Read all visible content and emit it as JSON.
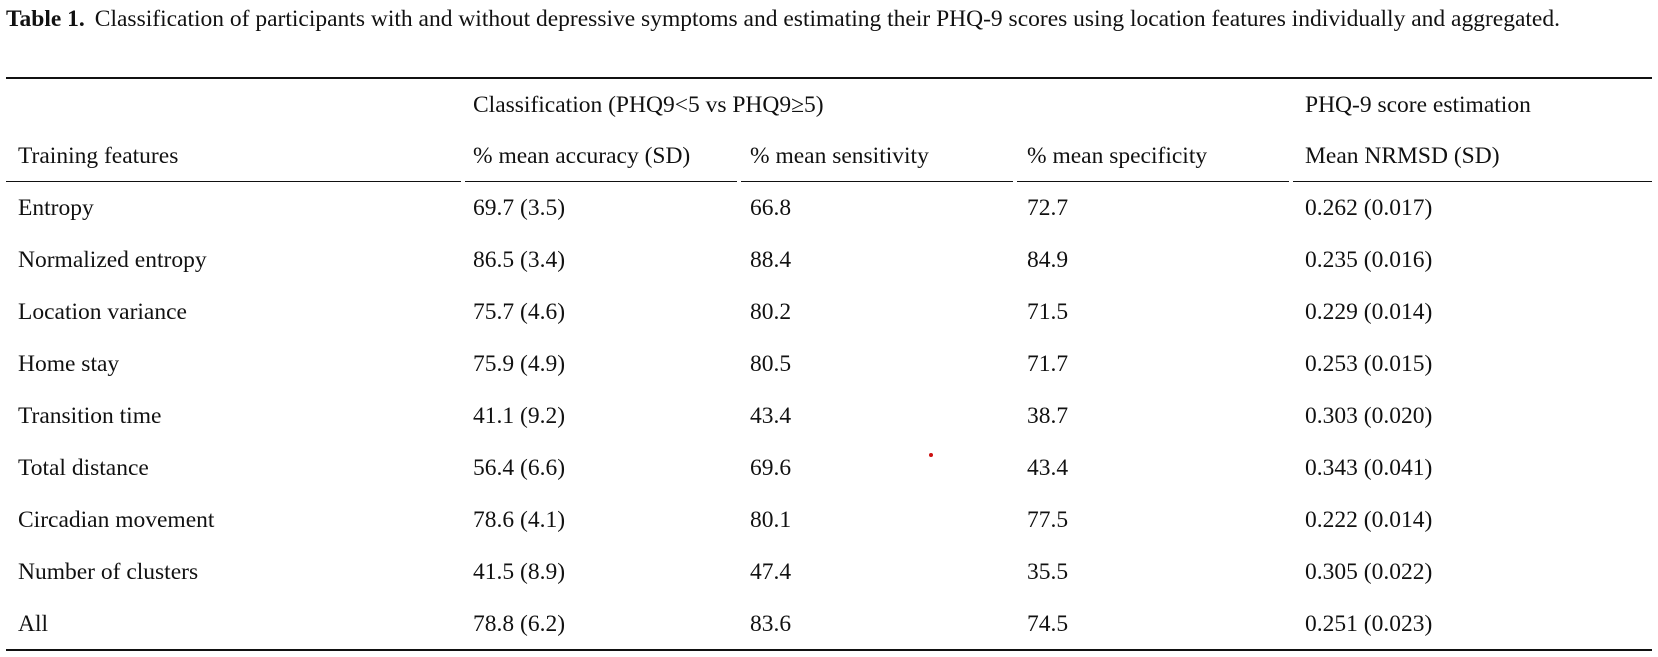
{
  "caption": {
    "label": "Table 1.",
    "text": "Classification of participants with and without depressive symptoms and estimating their PHQ-9 scores using location features individually and aggregated."
  },
  "header": {
    "group_classification": "Classification (PHQ9<5 vs PHQ9≥5)",
    "group_estimation": "PHQ-9 score estimation",
    "columns": [
      "Training features",
      "% mean accuracy (SD)",
      "% mean sensitivity",
      "% mean specificity",
      "Mean NRMSD (SD)"
    ]
  },
  "rows": [
    [
      "Entropy",
      "69.7 (3.5)",
      "66.8",
      "72.7",
      "0.262 (0.017)"
    ],
    [
      "Normalized entropy",
      "86.5 (3.4)",
      "88.4",
      "84.9",
      "0.235 (0.016)"
    ],
    [
      "Location variance",
      "75.7 (4.6)",
      "80.2",
      "71.5",
      "0.229 (0.014)"
    ],
    [
      "Home stay",
      "75.9 (4.9)",
      "80.5",
      "71.7",
      "0.253 (0.015)"
    ],
    [
      "Transition time",
      "41.1 (9.2)",
      "43.4",
      "38.7",
      "0.303 (0.020)"
    ],
    [
      "Total distance",
      "56.4 (6.6)",
      "69.6",
      "43.4",
      "0.343 (0.041)"
    ],
    [
      "Circadian movement",
      "78.6 (4.1)",
      "80.1",
      "77.5",
      "0.222 (0.014)"
    ],
    [
      "Number of clusters",
      "41.5 (8.9)",
      "47.4",
      "35.5",
      "0.305 (0.022)"
    ],
    [
      "All",
      "78.8 (6.2)",
      "83.6",
      "74.5",
      "0.251 (0.023)"
    ]
  ]
}
